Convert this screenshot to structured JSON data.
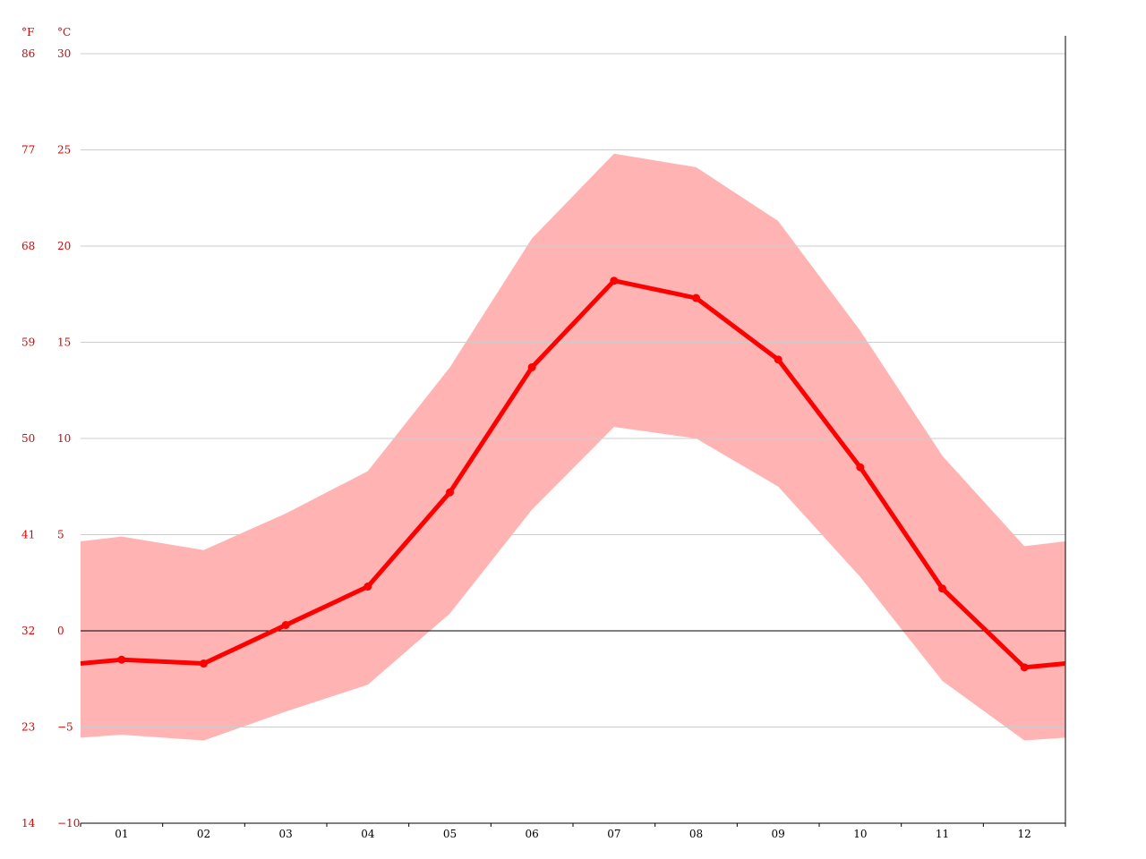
{
  "chart_data": {
    "type": "line",
    "categories": [
      "01",
      "02",
      "03",
      "04",
      "05",
      "06",
      "07",
      "08",
      "09",
      "10",
      "11",
      "12"
    ],
    "units": {
      "fahrenheit": "°F",
      "celsius": "°C"
    },
    "y_ticks_c": [
      "30",
      "25",
      "20",
      "15",
      "10",
      "5",
      "0",
      "-5",
      "-10"
    ],
    "y_ticks_f": [
      "86",
      "77",
      "68",
      "59",
      "50",
      "41",
      "32",
      "23",
      "14"
    ],
    "ylim": [
      -10,
      30
    ],
    "series": [
      {
        "values": [
          -1.5,
          -1.7,
          0.3,
          2.3,
          7.2,
          13.7,
          18.2,
          17.3,
          14.1,
          8.5,
          2.2,
          -1.9
        ]
      }
    ],
    "band": {
      "upper": [
        4.9,
        4.2,
        6.1,
        8.3,
        13.7,
        20.4,
        24.8,
        24.1,
        21.3,
        15.6,
        9.1,
        4.4
      ],
      "lower": [
        -5.4,
        -5.7,
        -4.2,
        -2.8,
        0.9,
        6.3,
        10.6,
        10.0,
        7.5,
        2.8,
        -2.6,
        -5.7
      ]
    },
    "grid": true,
    "colors": {
      "line": "#ff0000",
      "band": "#ffb3b3",
      "axis_labels": "#e00000",
      "grid": "#cccccc",
      "zero_line": "#000000"
    }
  }
}
